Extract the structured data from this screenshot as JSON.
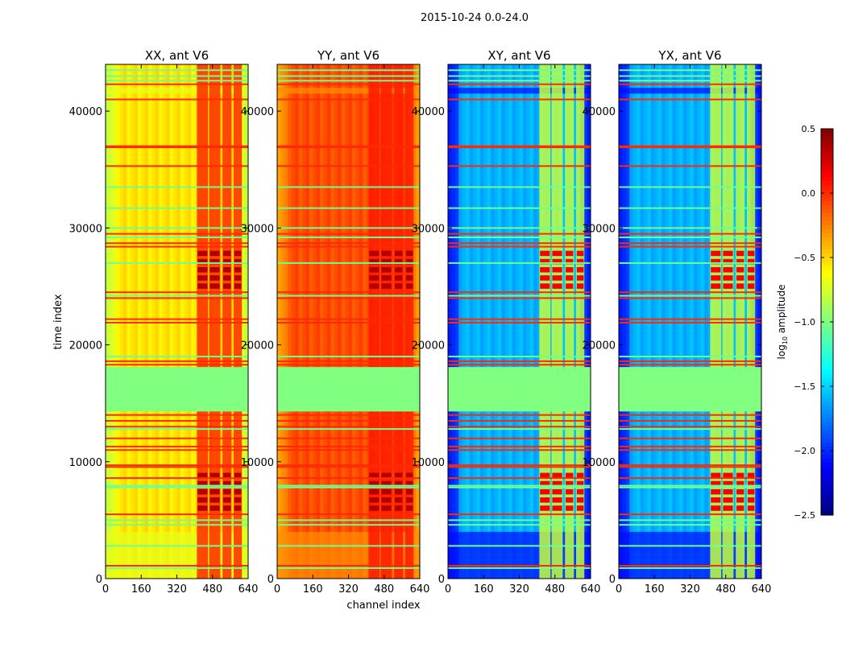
{
  "chart_data": {
    "type": "heatmap",
    "title": "2015-10-24 0.0-24.0",
    "xlabel": "channel index",
    "ylabel": "time index",
    "xlim": [
      0,
      640
    ],
    "ylim": [
      0,
      44000
    ],
    "xticks": [
      "0",
      "160",
      "320",
      "480",
      "640"
    ],
    "xtick_values": [
      0,
      160,
      320,
      480,
      640
    ],
    "yticks": [
      "0",
      "10000",
      "20000",
      "30000",
      "40000"
    ],
    "ytick_values": [
      0,
      10000,
      20000,
      30000,
      40000
    ],
    "colorbar": {
      "label_main": "log",
      "label_sub": "10",
      "label_rest": " amplitude",
      "range": [
        -2.5,
        0.5
      ],
      "ticks": [
        "0.5",
        "0.0",
        "−0.5",
        "−1.0",
        "−1.5",
        "−2.0",
        "−2.5"
      ],
      "tick_values": [
        0.5,
        0.0,
        -0.5,
        -1.0,
        -1.5,
        -2.0,
        -2.5
      ],
      "colormap": "jet"
    },
    "panels": [
      {
        "title": "XX, ant V6",
        "base": -0.55,
        "edge": -0.75,
        "rfi": 0.0,
        "rfi_hot": 0.35,
        "low": -0.7
      },
      {
        "title": "YY, ant V6",
        "base": -0.1,
        "edge": -0.3,
        "rfi": 0.05,
        "rfi_hot": 0.35,
        "low": -0.3
      },
      {
        "title": "XY, ant V6",
        "base": -1.6,
        "edge": -2.0,
        "rfi": -0.8,
        "rfi_hot": 0.15,
        "low": -2.1
      },
      {
        "title": "YX, ant V6",
        "base": -1.6,
        "edge": -2.0,
        "rfi": -0.8,
        "rfi_hot": 0.15,
        "low": -2.1
      }
    ],
    "rfi_channels": [
      [
        410,
        460
      ],
      [
        465,
        515
      ],
      [
        525,
        565
      ],
      [
        575,
        612
      ]
    ],
    "rfi_hot_times": [
      [
        24800,
        28200
      ],
      [
        5800,
        8900
      ]
    ],
    "flagged_band": {
      "time": [
        14300,
        18100
      ],
      "value": -1.0
    },
    "low_band_times": [
      [
        0,
        4000
      ],
      [
        41500,
        42000
      ]
    ],
    "hot_rows": [
      42300,
      41000,
      37000,
      36900,
      35300,
      29500,
      28700,
      28400,
      24500,
      24000,
      22200,
      21900,
      18600,
      18300,
      14000,
      13500,
      13000,
      12000,
      11300,
      11000,
      9700,
      9550,
      8600,
      5500,
      1100
    ],
    "cool_rows": [
      43500,
      43000,
      42600,
      33500,
      31700,
      30000,
      29200,
      27000,
      24200,
      19000,
      12800,
      7950,
      7800,
      5000,
      4600,
      2800,
      900
    ]
  }
}
